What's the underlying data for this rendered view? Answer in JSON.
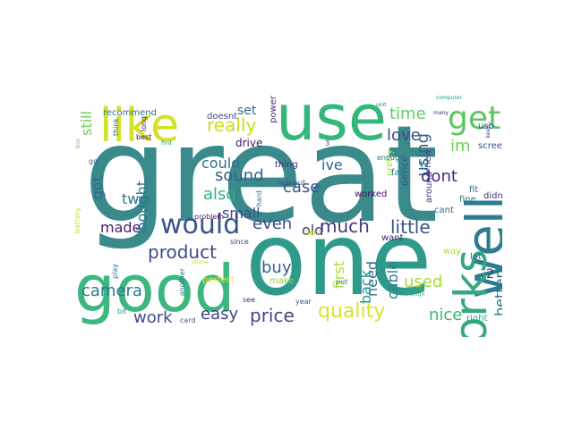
{
  "word_cloud": {
    "words": [
      {
        "text": "great",
        "color": "#3a8a8c"
      },
      {
        "text": "one",
        "color": "#2e9b8a"
      },
      {
        "text": "good",
        "color": "#3cb77e"
      },
      {
        "text": "use",
        "color": "#35b67a"
      },
      {
        "text": "like",
        "color": "#d4e12a"
      },
      {
        "text": "well",
        "color": "#2c7c8e"
      },
      {
        "text": "works",
        "color": "#36a785"
      },
      {
        "text": "would",
        "color": "#3b528b"
      },
      {
        "text": "get",
        "color": "#5ec661"
      },
      {
        "text": "quality",
        "color": "#d9e22b"
      },
      {
        "text": "price",
        "color": "#404788"
      },
      {
        "text": "really",
        "color": "#c7e020"
      },
      {
        "text": "product",
        "color": "#3e4a89"
      },
      {
        "text": "much",
        "color": "#453883"
      },
      {
        "text": "little",
        "color": "#3a538b"
      },
      {
        "text": "camera",
        "color": "#2a788e"
      },
      {
        "text": "nice",
        "color": "#38b977"
      },
      {
        "text": "using",
        "color": "#33638d"
      },
      {
        "text": "sound",
        "color": "#34618d"
      },
      {
        "text": "also",
        "color": "#2fb47c"
      },
      {
        "text": "time",
        "color": "#5ec962"
      },
      {
        "text": "im",
        "color": "#73d055"
      },
      {
        "text": "even",
        "color": "#3e4c8a"
      },
      {
        "text": "buy",
        "color": "#355f8d"
      },
      {
        "text": "love",
        "color": "#3e4a89"
      },
      {
        "text": "dont",
        "color": "#482576"
      },
      {
        "text": "case",
        "color": "#3b518b"
      },
      {
        "text": "used",
        "color": "#a2da37"
      },
      {
        "text": "easy",
        "color": "#414287"
      },
      {
        "text": "work",
        "color": "#3e4c8a"
      },
      {
        "text": "still",
        "color": "#6ece58"
      },
      {
        "text": "two",
        "color": "#2a788e"
      },
      {
        "text": "bought",
        "color": "#29798e"
      },
      {
        "text": "could",
        "color": "#2c728e"
      },
      {
        "text": "made",
        "color": "#481b6d"
      },
      {
        "text": "back",
        "color": "#20928c"
      },
      {
        "text": "first",
        "color": "#addc30"
      },
      {
        "text": "cable",
        "color": "#287d8e"
      },
      {
        "text": "better",
        "color": "#2c728e"
      },
      {
        "text": "need",
        "color": "#2d708e"
      },
      {
        "text": "got",
        "color": "#31678e"
      },
      {
        "text": "old",
        "color": "#46337e"
      },
      {
        "text": "small",
        "color": "#3e4a89"
      },
      {
        "text": "ive",
        "color": "#32658e"
      },
      {
        "text": "set",
        "color": "#31688e"
      },
      {
        "text": "2",
        "color": "#443a83"
      },
      {
        "text": "drive",
        "color": "#471164"
      },
      {
        "text": "recommend",
        "color": "#2f6b8e"
      },
      {
        "text": "doesnt",
        "color": "#3f4889"
      },
      {
        "text": "thing",
        "color": "#482979"
      },
      {
        "text": "power",
        "color": "#46307e"
      },
      {
        "text": "usb",
        "color": "#3b528b"
      },
      {
        "text": "screen",
        "color": "#3e4c8a"
      },
      {
        "text": "device",
        "color": "#3b518b"
      },
      {
        "text": "around",
        "color": "#453581"
      },
      {
        "text": "tv",
        "color": "#25848e"
      },
      {
        "text": "new",
        "color": "#3e4989"
      },
      {
        "text": "pretty",
        "color": "#a8db34"
      },
      {
        "text": "fit",
        "color": "#2c718e"
      },
      {
        "text": "right",
        "color": "#22a785"
      },
      {
        "text": "way",
        "color": "#addc30"
      },
      {
        "text": "lot",
        "color": "#2f6c8e"
      },
      {
        "text": "want",
        "color": "#481c6e"
      },
      {
        "text": "worked",
        "color": "#470e61"
      },
      {
        "text": "fine",
        "color": "#297a8e"
      },
      {
        "text": "cant",
        "color": "#31688e"
      },
      {
        "text": "didnt",
        "color": "#46307e"
      },
      {
        "text": "far",
        "color": "#2a788e"
      },
      {
        "text": "think",
        "color": "#2c738e"
      },
      {
        "text": "long",
        "color": "#48196b"
      },
      {
        "text": "another",
        "color": "#2a788e"
      },
      {
        "text": "perfect",
        "color": "#fde725"
      },
      {
        "text": "make",
        "color": "#8bd646"
      },
      {
        "text": "best",
        "color": "#440154"
      },
      {
        "text": "battery",
        "color": "#cde11d"
      },
      {
        "text": "play",
        "color": "#2e6e8e"
      },
      {
        "text": "bit",
        "color": "#1f988b"
      },
      {
        "text": "card",
        "color": "#3a548c"
      },
      {
        "text": "see",
        "color": "#482979"
      },
      {
        "text": "year",
        "color": "#37598c"
      },
      {
        "text": "put",
        "color": "#26828e"
      },
      {
        "text": "enough",
        "color": "#2a778e"
      },
      {
        "text": "without",
        "color": "#3a548c"
      },
      {
        "text": "3",
        "color": "#3f4889"
      },
      {
        "text": "hard",
        "color": "#2a788e"
      },
      {
        "text": "light",
        "color": "#b5de2b"
      },
      {
        "text": "since",
        "color": "#433e85"
      },
      {
        "text": "problem",
        "color": "#481f70"
      },
      {
        "text": "unit",
        "color": "#2d718e"
      },
      {
        "text": "phone",
        "color": "#c2df23"
      },
      {
        "text": "find",
        "color": "#1fa188"
      },
      {
        "text": "computer",
        "color": "#1f9a8a"
      },
      {
        "text": "many",
        "color": "#482173"
      },
      {
        "text": "keep",
        "color": "#3b518b"
      },
      {
        "text": "though",
        "color": "#2ab07f"
      },
      {
        "text": "box",
        "color": "#6ccd5a"
      },
      {
        "text": "go",
        "color": "#31688e"
      },
      {
        "text": "using",
        "color": "#21918c"
      },
      {
        "text": "break",
        "color": "#2fb47c"
      }
    ]
  }
}
